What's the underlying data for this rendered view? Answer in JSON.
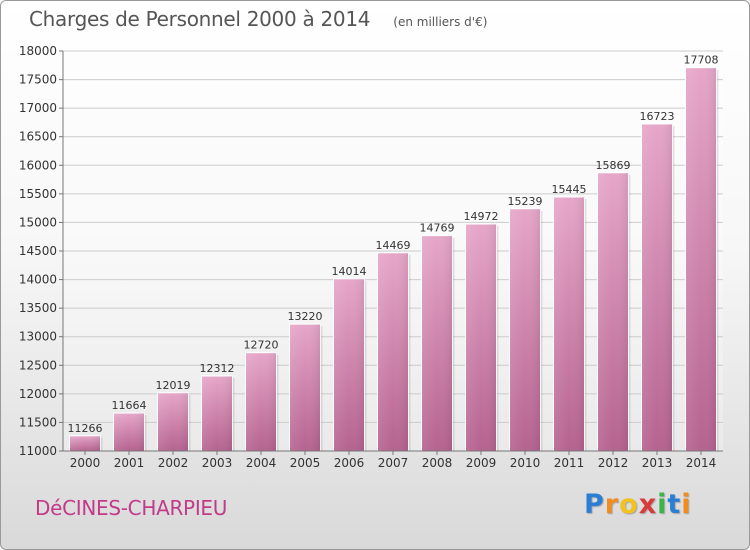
{
  "title": "Charges de Personnel 2000 à 2014",
  "unit_note": "(en milliers d'€)",
  "city": "DéCINES-CHARPIEU",
  "brand": {
    "letters": [
      "P",
      "r",
      "o",
      "x",
      "i",
      "t",
      "i"
    ],
    "colors": [
      "#2a7fd4",
      "#f28c1e",
      "#f2c21e",
      "#d93a3a",
      "#3bb54a",
      "#2a7fd4",
      "#f28c1e"
    ]
  },
  "chart_data": {
    "type": "bar",
    "title": "Charges de Personnel 2000 à 2014",
    "categories": [
      "2000",
      "2001",
      "2002",
      "2003",
      "2004",
      "2005",
      "2006",
      "2007",
      "2008",
      "2009",
      "2010",
      "2011",
      "2012",
      "2013",
      "2014"
    ],
    "values": [
      11266,
      11664,
      12019,
      12312,
      12720,
      13220,
      14014,
      14469,
      14769,
      14972,
      15239,
      15445,
      15869,
      16723,
      17708
    ],
    "ylim": [
      11000,
      18000
    ],
    "yticks": [
      11000,
      11500,
      12000,
      12500,
      13000,
      13500,
      14000,
      14500,
      15000,
      15500,
      16000,
      16500,
      17000,
      17500,
      18000
    ],
    "grid": true,
    "bar_color": "#d68cb6"
  }
}
